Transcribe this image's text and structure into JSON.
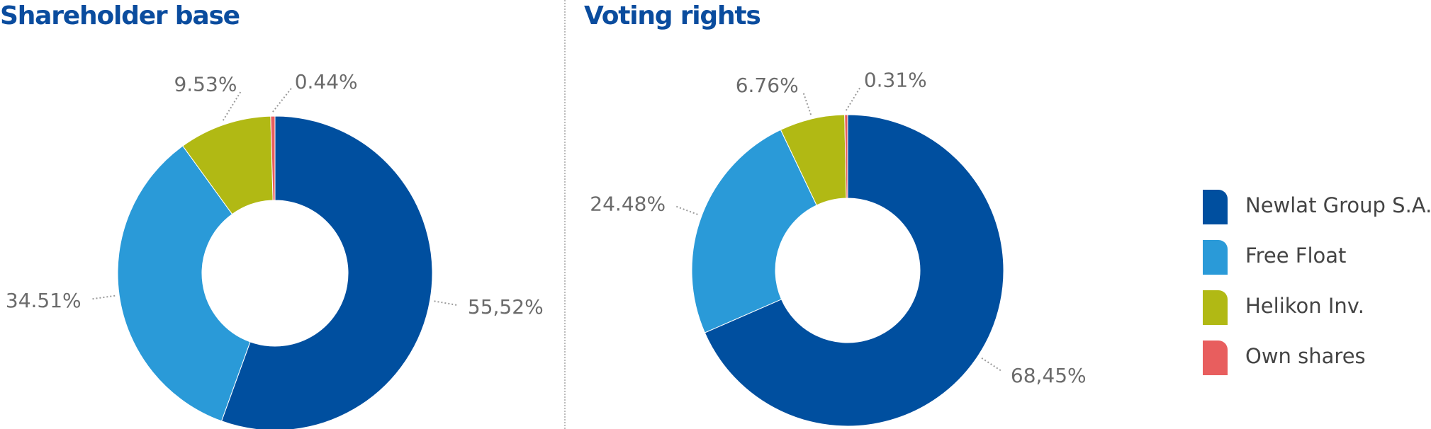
{
  "chart_data": [
    {
      "type": "pie",
      "title": "Shareholder base",
      "categories": [
        "Newlat Group S.A.",
        "Free Float",
        "Helikon Inv.",
        "Own shares"
      ],
      "values": [
        55.52,
        34.51,
        9.53,
        0.44
      ],
      "value_labels": [
        "55,52%",
        "34.51%",
        "9.53%",
        "0.44%"
      ],
      "donut": true
    },
    {
      "type": "pie",
      "title": "Voting rights",
      "categories": [
        "Newlat Group S.A.",
        "Free Float",
        "Helikon Inv.",
        "Own shares"
      ],
      "values": [
        68.45,
        24.48,
        6.76,
        0.31
      ],
      "value_labels": [
        "68,45%",
        "24.48%",
        "6.76%",
        "0.31%"
      ],
      "donut": true
    }
  ],
  "legend": {
    "placement": "right",
    "items": [
      {
        "label": "Newlat Group S.A.",
        "color": "#004f9f"
      },
      {
        "label": "Free Float",
        "color": "#2a9ad8"
      },
      {
        "label": "Helikon Inv.",
        "color": "#b1b914"
      },
      {
        "label": "Own shares",
        "color": "#e85e5e"
      }
    ]
  },
  "colors": {
    "title": "#0a4c9e",
    "label": "#6b6b6b",
    "leader": "#9a9a9a",
    "divider": "#bcbcbc"
  }
}
